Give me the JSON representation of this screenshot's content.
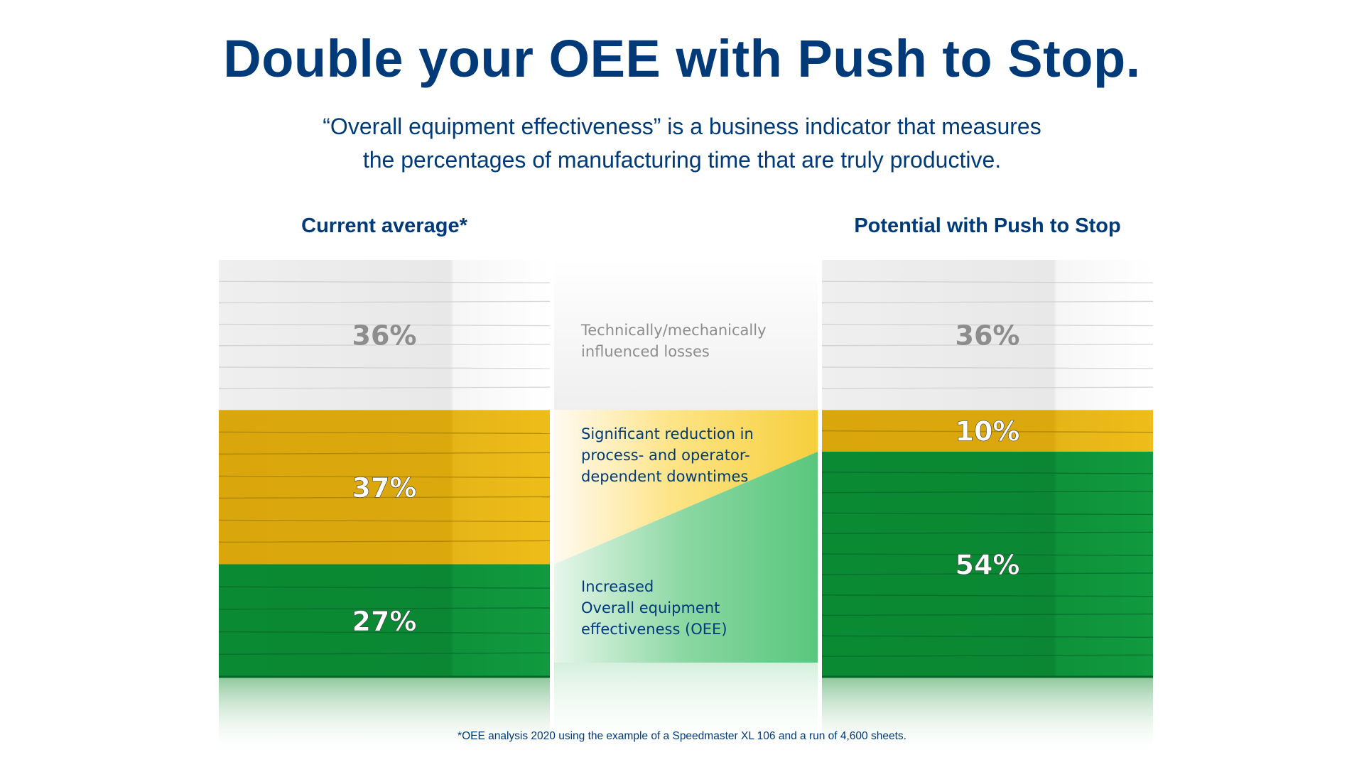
{
  "headline": "Double your OEE with Push to Stop.",
  "subtitle_lines": [
    "“Overall equipment effectiveness” is a business indicator that measures",
    "the percentages of manufacturing time that are truly productive."
  ],
  "footnote": "*OEE analysis 2020 using the example of a Speedmaster XL 106 and a run of 4,600 sheets.",
  "colors": {
    "title": "#003a79",
    "losses_white": "#eaeaec",
    "downtime_yellow": "#dcaa0c",
    "oee_green": "#0a8c33",
    "label_gray": "#8d8d8d"
  },
  "middle_labels": {
    "losses": [
      "Technically/mechanically",
      "influenced losses"
    ],
    "downtime": [
      "Significant reduction in",
      "process- and operator-",
      "dependent downtimes"
    ],
    "oee": [
      "Increased",
      "Overall equipment",
      "effectiveness (OEE)"
    ]
  },
  "chart_data": {
    "type": "bar",
    "stacked": true,
    "unit": "%",
    "categories": [
      "Current average*",
      "Potential with Push to Stop"
    ],
    "series": [
      {
        "name": "Technically/mechanically influenced losses",
        "values": [
          36,
          36
        ],
        "labels": [
          "36%",
          "36%"
        ],
        "color": "#eaeaec"
      },
      {
        "name": "Significant reduction in process- and operator-dependent downtimes",
        "values": [
          37,
          10
        ],
        "labels": [
          "37%",
          "10%"
        ],
        "color": "#dcaa0c"
      },
      {
        "name": "Increased Overall equipment effectiveness (OEE)",
        "values": [
          27,
          54
        ],
        "labels": [
          "27%",
          "54%"
        ],
        "color": "#0a8c33"
      }
    ]
  }
}
